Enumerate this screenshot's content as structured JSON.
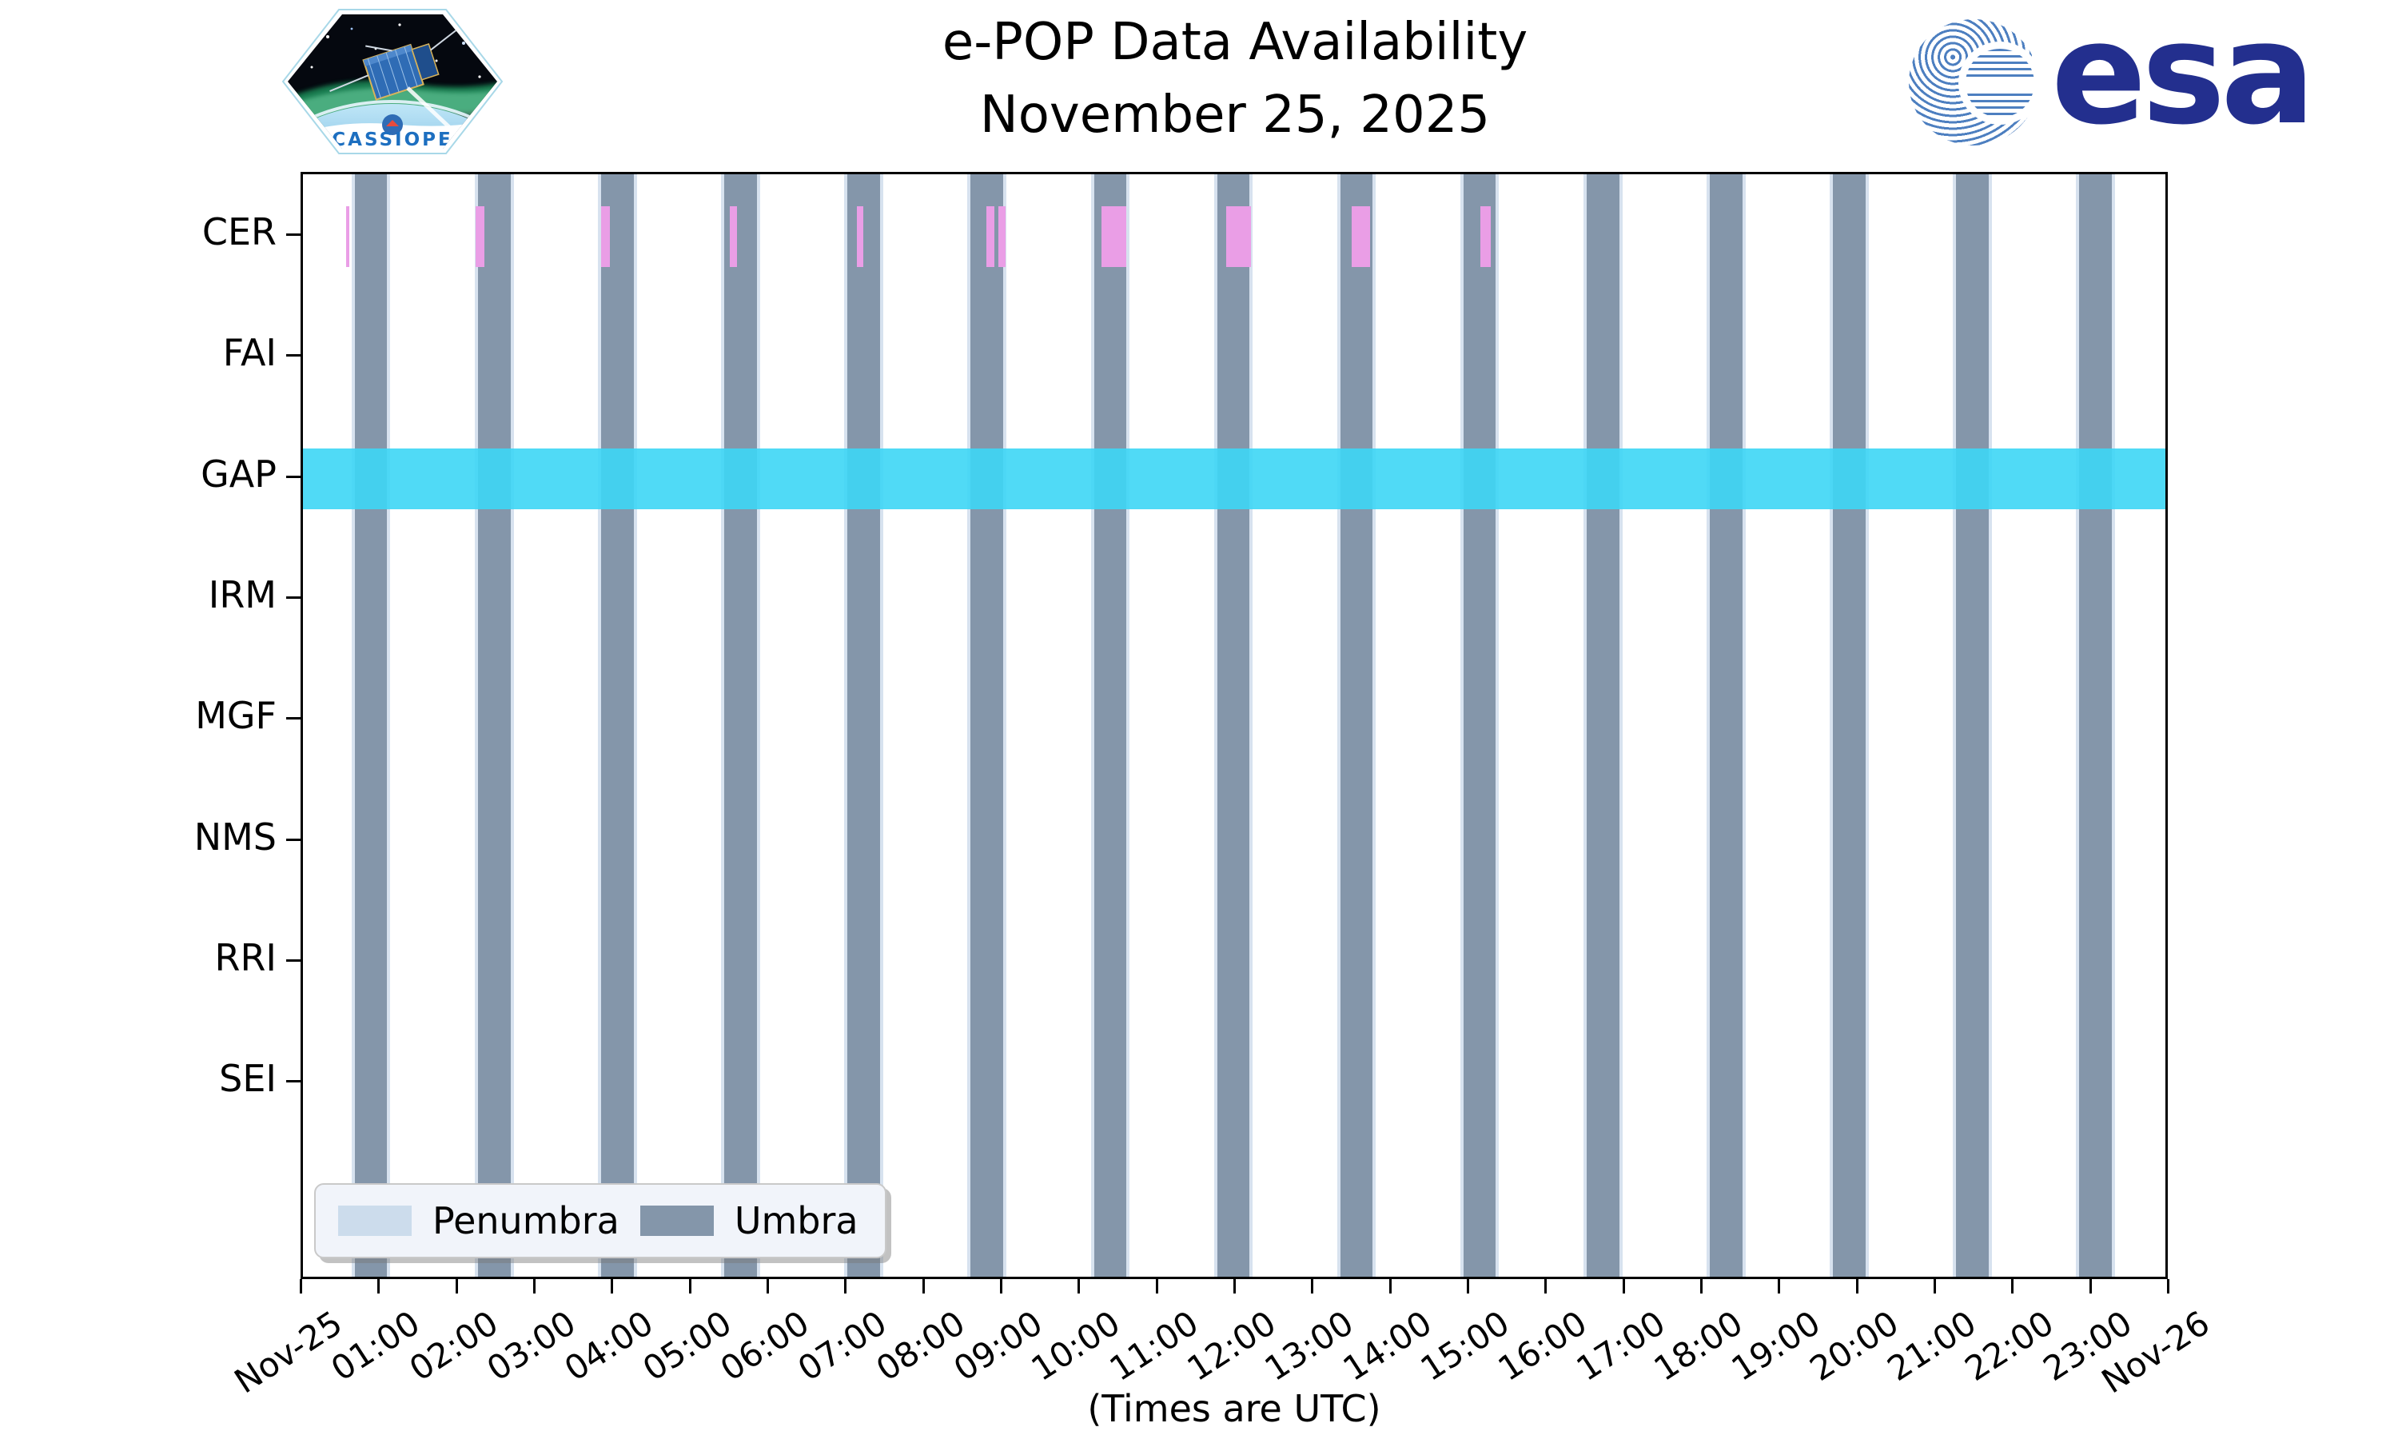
{
  "header": {
    "title_line1": "e-POP Data Availability",
    "title_line2": "November 25, 2025",
    "cassiope_badge_text": "CASSIOPE",
    "esa_wordmark": "esa"
  },
  "xaxis_title": "(Times are UTC)",
  "chart_data": {
    "type": "timeline",
    "title": "e-POP Data Availability",
    "subtitle": "November 25, 2025",
    "xlabel": "(Times are UTC)",
    "x_range_hours": [
      0,
      24
    ],
    "rows": [
      "CER",
      "FAI",
      "GAP",
      "IRM",
      "MGF",
      "NMS",
      "RRI",
      "SEI"
    ],
    "x_ticks": [
      {
        "hour": 0,
        "label": "Nov-25"
      },
      {
        "hour": 1,
        "label": "01:00"
      },
      {
        "hour": 2,
        "label": "02:00"
      },
      {
        "hour": 3,
        "label": "03:00"
      },
      {
        "hour": 4,
        "label": "04:00"
      },
      {
        "hour": 5,
        "label": "05:00"
      },
      {
        "hour": 6,
        "label": "06:00"
      },
      {
        "hour": 7,
        "label": "07:00"
      },
      {
        "hour": 8,
        "label": "08:00"
      },
      {
        "hour": 9,
        "label": "09:00"
      },
      {
        "hour": 10,
        "label": "10:00"
      },
      {
        "hour": 11,
        "label": "11:00"
      },
      {
        "hour": 12,
        "label": "12:00"
      },
      {
        "hour": 13,
        "label": "13:00"
      },
      {
        "hour": 14,
        "label": "14:00"
      },
      {
        "hour": 15,
        "label": "15:00"
      },
      {
        "hour": 16,
        "label": "16:00"
      },
      {
        "hour": 17,
        "label": "17:00"
      },
      {
        "hour": 18,
        "label": "18:00"
      },
      {
        "hour": 19,
        "label": "19:00"
      },
      {
        "hour": 20,
        "label": "20:00"
      },
      {
        "hour": 21,
        "label": "21:00"
      },
      {
        "hour": 22,
        "label": "22:00"
      },
      {
        "hour": 23,
        "label": "23:00"
      },
      {
        "hour": 24,
        "label": "Nov-26"
      }
    ],
    "umbra_intervals": [
      {
        "start": "00:40",
        "end": "01:05"
      },
      {
        "start": "02:15",
        "end": "02:40"
      },
      {
        "start": "03:50",
        "end": "04:15"
      },
      {
        "start": "05:25",
        "end": "05:50"
      },
      {
        "start": "07:00",
        "end": "07:25"
      },
      {
        "start": "08:35",
        "end": "09:00"
      },
      {
        "start": "10:10",
        "end": "10:35"
      },
      {
        "start": "11:45",
        "end": "12:10"
      },
      {
        "start": "13:20",
        "end": "13:45"
      },
      {
        "start": "14:55",
        "end": "15:20"
      },
      {
        "start": "16:30",
        "end": "16:55"
      },
      {
        "start": "18:05",
        "end": "18:30"
      },
      {
        "start": "19:40",
        "end": "20:05"
      },
      {
        "start": "21:15",
        "end": "21:40"
      },
      {
        "start": "22:50",
        "end": "23:15"
      }
    ],
    "penumbra_minutes_each_side": 2.5,
    "gap_band": {
      "row": "GAP",
      "start": "00:00",
      "end": "24:00"
    },
    "cer_intervals": [
      {
        "start": "00:33",
        "end": "00:36"
      },
      {
        "start": "02:13",
        "end": "02:20"
      },
      {
        "start": "03:50",
        "end": "03:57"
      },
      {
        "start": "05:29",
        "end": "05:35"
      },
      {
        "start": "07:07",
        "end": "07:12"
      },
      {
        "start": "08:47",
        "end": "08:53"
      },
      {
        "start": "08:56",
        "end": "09:02"
      },
      {
        "start": "10:16",
        "end": "10:35"
      },
      {
        "start": "11:52",
        "end": "12:11"
      },
      {
        "start": "13:29",
        "end": "13:43"
      },
      {
        "start": "15:08",
        "end": "15:16"
      }
    ],
    "legend": [
      {
        "label": "Penumbra",
        "color": "#ccdcec"
      },
      {
        "label": "Umbra",
        "color": "#8496aa"
      }
    ],
    "colors": {
      "umbra": "#8496aa",
      "penumbra": "#d7e2ef",
      "cer": "#ea9ee6",
      "gap_band": "#3dd6f5"
    },
    "legend_position": "lower left",
    "grid": false
  }
}
